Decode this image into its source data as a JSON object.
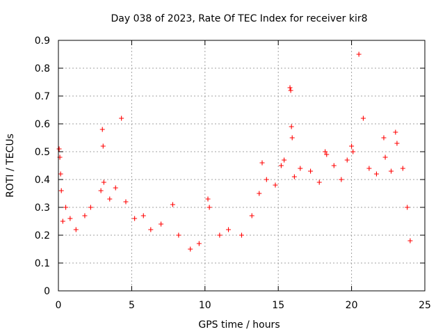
{
  "chart_data": {
    "type": "scatter",
    "title": "Day 038 of 2023, Rate Of TEC Index for receiver kir8",
    "xlabel": "GPS time / hours",
    "ylabel": "ROTI / TECUs",
    "xlim": [
      0,
      25
    ],
    "ylim": [
      0,
      0.9
    ],
    "xticks": [
      "0",
      "5",
      "10",
      "15",
      "20",
      "25"
    ],
    "yticks": [
      "0",
      "0.1",
      "0.2",
      "0.3",
      "0.4",
      "0.5",
      "0.6",
      "0.7",
      "0.8",
      "0.9"
    ],
    "grid": true,
    "marker": "+",
    "color": "#ff0000",
    "series": [
      {
        "name": "ROTI",
        "points": [
          [
            0.05,
            0.51
          ],
          [
            0.1,
            0.48
          ],
          [
            0.15,
            0.42
          ],
          [
            0.2,
            0.36
          ],
          [
            0.3,
            0.25
          ],
          [
            0.5,
            0.3
          ],
          [
            0.8,
            0.26
          ],
          [
            1.2,
            0.22
          ],
          [
            1.8,
            0.27
          ],
          [
            2.2,
            0.3
          ],
          [
            2.9,
            0.36
          ],
          [
            3.0,
            0.58
          ],
          [
            3.05,
            0.52
          ],
          [
            3.1,
            0.39
          ],
          [
            3.5,
            0.33
          ],
          [
            3.9,
            0.37
          ],
          [
            4.3,
            0.62
          ],
          [
            4.6,
            0.32
          ],
          [
            5.2,
            0.26
          ],
          [
            5.8,
            0.27
          ],
          [
            6.3,
            0.22
          ],
          [
            7.0,
            0.24
          ],
          [
            7.8,
            0.31
          ],
          [
            8.2,
            0.2
          ],
          [
            9.0,
            0.15
          ],
          [
            9.6,
            0.17
          ],
          [
            10.2,
            0.33
          ],
          [
            10.3,
            0.3
          ],
          [
            11.0,
            0.2
          ],
          [
            11.6,
            0.22
          ],
          [
            12.5,
            0.2
          ],
          [
            13.2,
            0.27
          ],
          [
            13.7,
            0.35
          ],
          [
            13.9,
            0.46
          ],
          [
            14.2,
            0.4
          ],
          [
            14.8,
            0.38
          ],
          [
            15.2,
            0.45
          ],
          [
            15.4,
            0.47
          ],
          [
            15.8,
            0.73
          ],
          [
            15.85,
            0.72
          ],
          [
            15.9,
            0.59
          ],
          [
            15.95,
            0.55
          ],
          [
            16.1,
            0.41
          ],
          [
            16.5,
            0.44
          ],
          [
            17.2,
            0.43
          ],
          [
            17.8,
            0.39
          ],
          [
            18.2,
            0.5
          ],
          [
            18.3,
            0.49
          ],
          [
            18.8,
            0.45
          ],
          [
            19.3,
            0.4
          ],
          [
            19.7,
            0.47
          ],
          [
            20.0,
            0.52
          ],
          [
            20.1,
            0.5
          ],
          [
            20.5,
            0.85
          ],
          [
            20.8,
            0.62
          ],
          [
            21.2,
            0.44
          ],
          [
            21.7,
            0.42
          ],
          [
            22.2,
            0.55
          ],
          [
            22.3,
            0.48
          ],
          [
            22.7,
            0.43
          ],
          [
            23.0,
            0.57
          ],
          [
            23.1,
            0.53
          ],
          [
            23.5,
            0.44
          ],
          [
            23.8,
            0.3
          ],
          [
            24.0,
            0.18
          ]
        ]
      }
    ]
  }
}
